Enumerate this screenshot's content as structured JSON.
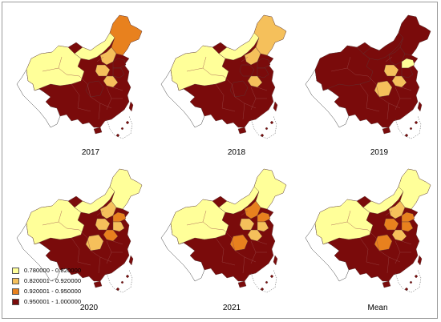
{
  "legend": {
    "classes": [
      {
        "range": "0.780000 - 0.820000",
        "color": "#ffff99"
      },
      {
        "range": "0.820001 - 0.920000",
        "color": "#f5c05b"
      },
      {
        "range": "0.920001 - 0.950000",
        "color": "#e8811e"
      },
      {
        "range": "0.950001 - 1.000000",
        "color": "#7a0b0b"
      }
    ]
  },
  "panels": [
    {
      "label": "2017",
      "region_class": {
        "northwest": 0,
        "innermongolia": 0,
        "northeast": 2,
        "hebei": 1,
        "henan": 1,
        "anhui": 1,
        "shandong": 3,
        "jiangsu": 3,
        "central": 3
      }
    },
    {
      "label": "2018",
      "region_class": {
        "northwest": 0,
        "innermongolia": 0,
        "northeast": 1,
        "hebei": 1,
        "henan": 3,
        "anhui": 1,
        "shandong": 3,
        "jiangsu": 3,
        "central": 3
      }
    },
    {
      "label": "2019",
      "region_class": {
        "northwest": 3,
        "innermongolia": 3,
        "northeast": 3,
        "hebei": 3,
        "henan": 1,
        "anhui": 1,
        "shandong": 0,
        "jiangsu": 3,
        "central": 1
      }
    },
    {
      "label": "2020",
      "region_class": {
        "northwest": 0,
        "innermongolia": 0,
        "northeast": 0,
        "hebei": 1,
        "henan": 1,
        "anhui": 2,
        "shandong": 2,
        "jiangsu": 1,
        "central": 1
      }
    },
    {
      "label": "2021",
      "region_class": {
        "northwest": 0,
        "innermongolia": 0,
        "northeast": 0,
        "hebei": 2,
        "henan": 1,
        "anhui": 1,
        "shandong": 2,
        "jiangsu": 1,
        "central": 2
      }
    },
    {
      "label": "Mean",
      "region_class": {
        "northwest": 0,
        "innermongolia": 0,
        "northeast": 0,
        "hebei": 1,
        "henan": 2,
        "anhui": 1,
        "shandong": 2,
        "jiangsu": 2,
        "central": 2
      }
    }
  ]
}
